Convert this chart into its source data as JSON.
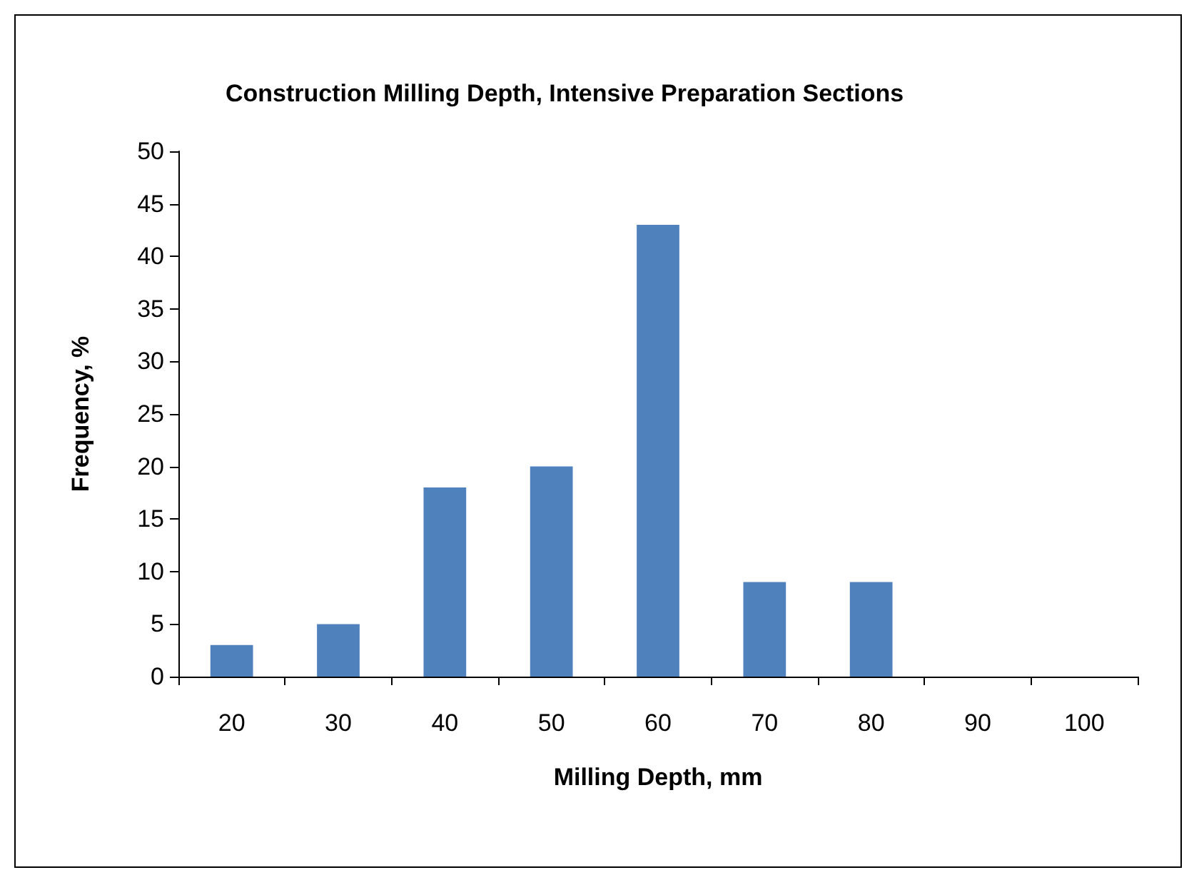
{
  "chart_data": {
    "type": "bar",
    "title": "Construction Milling Depth, Intensive Preparation Sections",
    "xlabel": "Milling Depth, mm",
    "ylabel": "Frequency, %",
    "categories": [
      "20",
      "30",
      "40",
      "50",
      "60",
      "70",
      "80",
      "90",
      "100"
    ],
    "values": [
      3,
      5,
      18,
      20,
      43,
      9,
      9,
      0,
      0
    ],
    "color": "#4f81bd",
    "ylim": [
      0,
      50
    ],
    "yticks": [
      0,
      5,
      10,
      15,
      20,
      25,
      30,
      35,
      40,
      45,
      50
    ],
    "grid": false
  }
}
